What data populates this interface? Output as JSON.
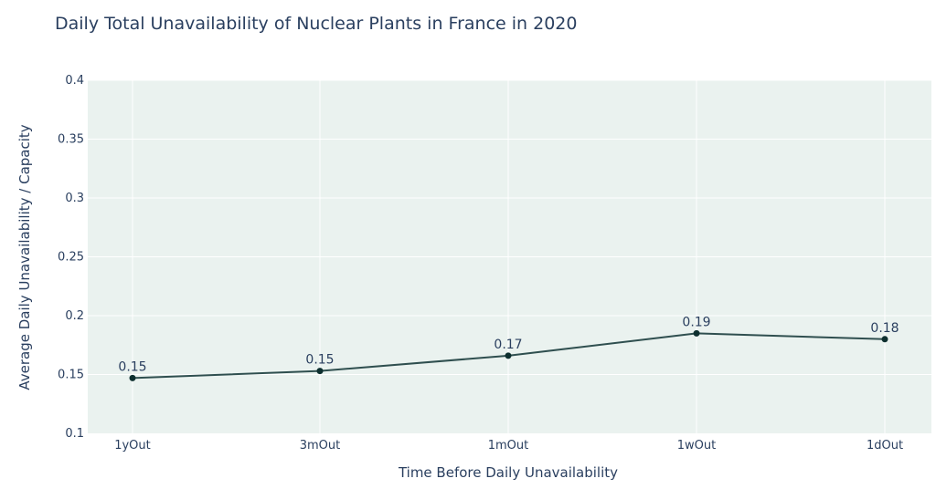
{
  "chart_data": {
    "type": "line",
    "title": "Daily Total Unavailability of Nuclear Plants in France in 2020",
    "xlabel": "Time Before Daily Unavailability",
    "ylabel": "Average Daily Unavailability / Capacity",
    "categories": [
      "1yOut",
      "3mOut",
      "1mOut",
      "1wOut",
      "1dOut"
    ],
    "values": [
      0.147,
      0.153,
      0.166,
      0.185,
      0.18
    ],
    "data_labels": [
      "0.15",
      "0.15",
      "0.17",
      "0.19",
      "0.18"
    ],
    "ylim": [
      0.1,
      0.4
    ],
    "yticks": [
      0.1,
      0.15,
      0.2,
      0.25,
      0.3,
      0.35,
      0.4
    ],
    "ytick_labels": [
      "0.1",
      "0.15",
      "0.2",
      "0.25",
      "0.3",
      "0.35",
      "0.4"
    ],
    "grid": true,
    "colors": {
      "plot_bg": "#eaf2ef",
      "grid": "#ffffff",
      "line": "#2f4f4f",
      "marker": "#0d2f2f"
    }
  }
}
